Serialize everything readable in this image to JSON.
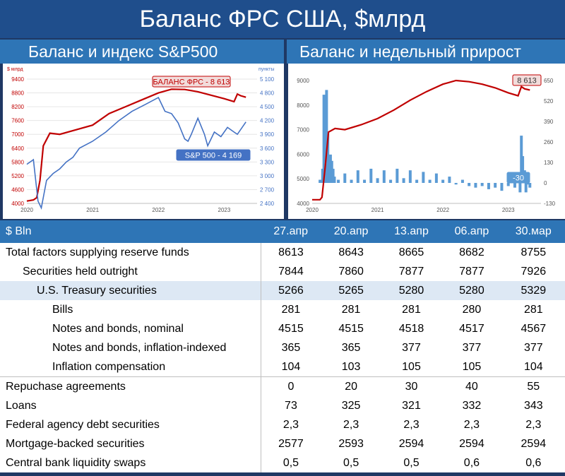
{
  "page_title": "Баланс ФРС США, $млрд",
  "left_subtitle": "Баланс и индекс S&P500",
  "right_subtitle": "Баланс и недельный прирост",
  "colors": {
    "balance": "#c00000",
    "sp500": "#4472c4",
    "weekly": "#5b9bd5",
    "header": "#2e75b6"
  },
  "chart_data": [
    {
      "type": "line",
      "y_left_unit": "$ млрд",
      "y_right_unit": "пункты",
      "x_ticks": [
        "2020",
        "2021",
        "2022",
        "2023"
      ],
      "y_left_ticks": [
        "9400",
        "8800",
        "8200",
        "7600",
        "7000",
        "6400",
        "5800",
        "5200",
        "4600",
        "4000"
      ],
      "y_right_ticks": [
        "5 100",
        "4 800",
        "4 500",
        "4 200",
        "3 900",
        "3 600",
        "3 300",
        "3 000",
        "2 700",
        "2 400"
      ],
      "ylim_left": [
        4000,
        9400
      ],
      "ylim_right": [
        2400,
        5100
      ],
      "series": [
        {
          "name": "БАЛАНС ФРС",
          "axis": "left",
          "x": [
            2020.0,
            2020.1,
            2020.15,
            2020.2,
            2020.25,
            2020.35,
            2020.5,
            2020.75,
            2021.0,
            2021.25,
            2021.5,
            2021.75,
            2022.0,
            2022.2,
            2022.4,
            2022.6,
            2022.8,
            2023.0,
            2023.15,
            2023.2,
            2023.25,
            2023.33
          ],
          "values": [
            4100,
            4150,
            4250,
            5000,
            6500,
            7050,
            7000,
            7200,
            7400,
            7900,
            8200,
            8500,
            8800,
            8960,
            8950,
            8850,
            8700,
            8550,
            8420,
            8750,
            8680,
            8613
          ]
        },
        {
          "name": "S&P 500",
          "axis": "right",
          "x": [
            2020.0,
            2020.1,
            2020.17,
            2020.22,
            2020.3,
            2020.4,
            2020.5,
            2020.6,
            2020.7,
            2020.8,
            2021.0,
            2021.2,
            2021.4,
            2021.6,
            2021.8,
            2022.0,
            2022.1,
            2022.2,
            2022.3,
            2022.4,
            2022.45,
            2022.5,
            2022.6,
            2022.7,
            2022.75,
            2022.85,
            2022.95,
            2023.05,
            2023.15,
            2023.2,
            2023.33
          ],
          "values": [
            3250,
            3350,
            2450,
            2300,
            2900,
            3050,
            3150,
            3300,
            3400,
            3600,
            3750,
            3950,
            4200,
            4400,
            4550,
            4700,
            4400,
            4350,
            4150,
            3800,
            3750,
            3900,
            4250,
            3900,
            3650,
            3950,
            3850,
            4050,
            3950,
            3900,
            4169
          ]
        }
      ],
      "annotations": [
        {
          "text": "БАЛАНС ФРС - 8 613"
        },
        {
          "text": "S&P 500 - 4 169"
        }
      ]
    },
    {
      "type": "line+bar",
      "x_ticks": [
        "2020",
        "2021",
        "2022",
        "2023"
      ],
      "y_left_ticks": [
        "9000",
        "8000",
        "7000",
        "6000",
        "5000",
        "4000"
      ],
      "y_right_ticks": [
        "650",
        "520",
        "390",
        "260",
        "130",
        "0",
        "-130"
      ],
      "ylim_left": [
        4000,
        9000
      ],
      "ylim_right": [
        -130,
        650
      ],
      "series": [
        {
          "name": "Баланс ФРС",
          "axis": "left",
          "x": [
            2020.0,
            2020.12,
            2020.15,
            2020.2,
            2020.25,
            2020.35,
            2020.5,
            2020.75,
            2021.0,
            2021.25,
            2021.5,
            2021.75,
            2022.0,
            2022.2,
            2022.4,
            2022.6,
            2022.8,
            2023.0,
            2023.15,
            2023.2,
            2023.25,
            2023.33
          ],
          "values": [
            4150,
            4150,
            4250,
            5500,
            6900,
            7050,
            7000,
            7200,
            7450,
            7800,
            8200,
            8550,
            8850,
            9000,
            8950,
            8850,
            8700,
            8500,
            8380,
            8750,
            8660,
            8613
          ]
        },
        {
          "name": "Недельный прирост",
          "axis": "right",
          "type": "bar",
          "x": [
            2020.12,
            2020.16,
            2020.18,
            2020.2,
            2020.22,
            2020.24,
            2020.26,
            2020.28,
            2020.3,
            2020.32,
            2020.34,
            2020.4,
            2020.5,
            2020.6,
            2020.7,
            2020.8,
            2020.9,
            2021.0,
            2021.1,
            2021.2,
            2021.3,
            2021.4,
            2021.5,
            2021.6,
            2021.7,
            2021.8,
            2021.9,
            2022.0,
            2022.1,
            2022.2,
            2022.3,
            2022.4,
            2022.5,
            2022.6,
            2022.7,
            2022.8,
            2022.9,
            2023.0,
            2023.1,
            2023.16,
            2023.18,
            2023.2,
            2023.22,
            2023.25,
            2023.27,
            2023.3,
            2023.33
          ],
          "values": [
            20,
            90,
            560,
            330,
            590,
            320,
            160,
            180,
            140,
            90,
            40,
            20,
            60,
            20,
            80,
            20,
            90,
            30,
            80,
            20,
            90,
            30,
            80,
            20,
            70,
            20,
            60,
            20,
            40,
            -10,
            20,
            -20,
            -30,
            -20,
            -40,
            -30,
            -50,
            -20,
            -30,
            30,
            -60,
            300,
            170,
            80,
            -60,
            -10,
            -30
          ]
        }
      ],
      "annotations": [
        {
          "text": "8 613"
        },
        {
          "text": "-30"
        }
      ]
    }
  ],
  "table": {
    "header": [
      "$ Bln",
      "27.апр",
      "20.апр",
      "13.апр",
      "06.апр",
      "30.мар"
    ],
    "rows": [
      {
        "label": "Total factors supplying reserve funds",
        "level": 0,
        "values": [
          "8613",
          "8643",
          "8665",
          "8682",
          "8755"
        ]
      },
      {
        "label": "Securities held outright",
        "level": 1,
        "values": [
          "7844",
          "7860",
          "7877",
          "7877",
          "7926"
        ]
      },
      {
        "label": "U.S. Treasury securities",
        "level": 2,
        "values": [
          "5266",
          "5265",
          "5280",
          "5280",
          "5329"
        ]
      },
      {
        "label": "Bills",
        "level": 3,
        "values": [
          "281",
          "281",
          "281",
          "280",
          "281"
        ]
      },
      {
        "label": "Notes and bonds, nominal",
        "level": 3,
        "values": [
          "4515",
          "4515",
          "4518",
          "4517",
          "4567"
        ]
      },
      {
        "label": "Notes and bonds, inflation-indexed",
        "level": 3,
        "values": [
          "365",
          "365",
          "377",
          "377",
          "377"
        ]
      },
      {
        "label": "Inflation compensation",
        "level": 3,
        "values": [
          "104",
          "103",
          "105",
          "105",
          "104"
        ]
      },
      {
        "label": "Repuchase agreements",
        "level": 0,
        "values": [
          "0",
          "20",
          "30",
          "40",
          "55"
        ]
      },
      {
        "label": "Loans",
        "level": 0,
        "values": [
          "73",
          "325",
          "321",
          "332",
          "343"
        ]
      },
      {
        "label": "Federal agency debt securities",
        "level": 0,
        "values": [
          "2,3",
          "2,3",
          "2,3",
          "2,3",
          "2,3"
        ]
      },
      {
        "label": "Mortgage-backed securities",
        "level": 0,
        "values": [
          "2577",
          "2593",
          "2594",
          "2594",
          "2594"
        ]
      },
      {
        "label": "Central bank liquidity swaps",
        "level": 0,
        "values": [
          "0,5",
          "0,5",
          "0,5",
          "0,6",
          "0,6"
        ]
      }
    ]
  }
}
